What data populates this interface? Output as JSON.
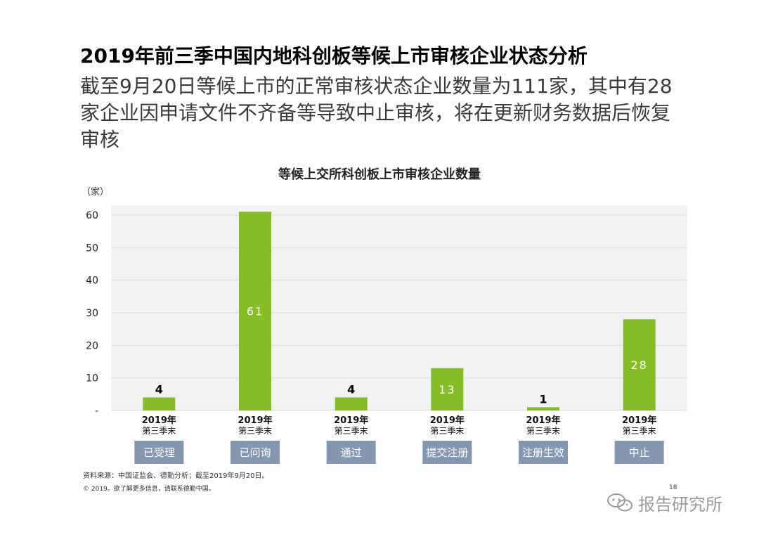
{
  "title": "2019年前三季中国内地科创板等候上市审核企业状态分析",
  "subtitle": "截至9月20日等候上市的正常审核状态企业数量为111家，其中有28家企业因申请文件不齐备等导致中止审核，将在更新财务数据后恢复审核",
  "colors": {
    "bar": "#86bc25",
    "plot_bg": "#f2f2f2",
    "grid": "#d9d9d9",
    "status_box": "#8496b0",
    "status_text": "#ffffff",
    "label_inside": "#ffffff",
    "label_outside": "#000000"
  },
  "chart_data": {
    "type": "bar",
    "title": "等候上交所科创板上市审核企业数量",
    "ylabel": "（家）",
    "ylim": [
      0,
      63
    ],
    "yticks": [
      "-",
      "10",
      "20",
      "30",
      "40",
      "50",
      "60"
    ],
    "ytick_values": [
      0,
      10,
      20,
      30,
      40,
      50,
      60
    ],
    "grid": true,
    "categories": [
      "已受理",
      "已问询",
      "通过",
      "提交注册",
      "注册生效",
      "中止"
    ],
    "period_line1": "2019年",
    "period_line2": "第三季末",
    "values": [
      4,
      61,
      4,
      13,
      1,
      28
    ],
    "data_labels": [
      "4",
      "61",
      "4",
      "13",
      "1",
      "28"
    ],
    "label_inside": [
      false,
      true,
      false,
      true,
      false,
      true
    ]
  },
  "footer": {
    "source": "资料来源：中国证监会、德勤分析；截至2019年9月20日。",
    "copyright": "© 2019。欲了解更多信息，请联系德勤中国。",
    "page_number": "18",
    "watermark": "报告研究所",
    "watermark_icon": "wechat-icon"
  }
}
